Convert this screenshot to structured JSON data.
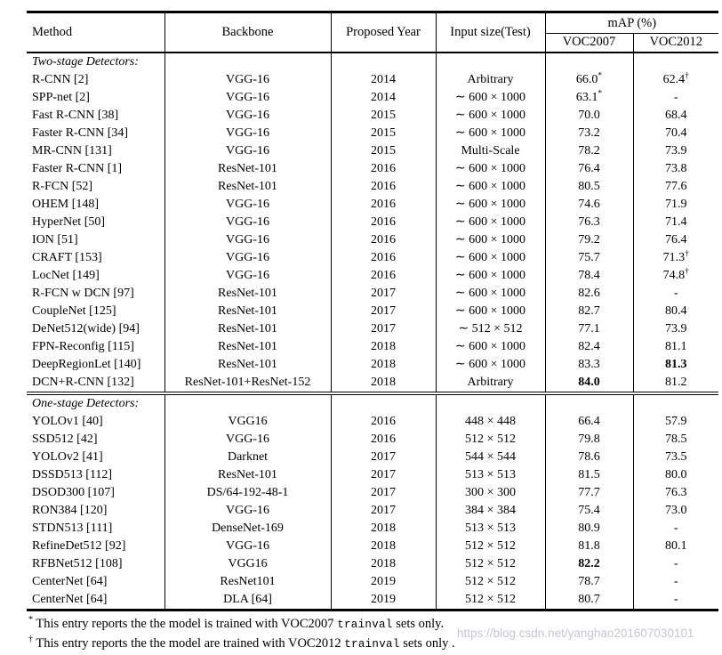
{
  "table": {
    "headers": {
      "method": "Method",
      "backbone": "Backbone",
      "year": "Proposed Year",
      "input": "Input size(Test)",
      "map": "mAP (%)",
      "voc2007": "VOC2007",
      "voc2012": "VOC2012"
    },
    "sections": [
      {
        "label": "Two-stage Detectors:",
        "rows": [
          {
            "method": "R-CNN [2]",
            "backbone": "VGG-16",
            "year": "2014",
            "input": "Arbitrary",
            "voc2007": {
              "text": "66.0",
              "sup": "*"
            },
            "voc2012": {
              "text": "62.4",
              "sup": "†"
            }
          },
          {
            "method": "SPP-net [2]",
            "backbone": "VGG-16",
            "year": "2014",
            "input": "∼ 600 × 1000",
            "voc2007": {
              "text": "63.1",
              "sup": "*"
            },
            "voc2012": {
              "text": "-"
            }
          },
          {
            "method": "Fast R-CNN [38]",
            "backbone": "VGG-16",
            "year": "2015",
            "input": "∼ 600 × 1000",
            "voc2007": {
              "text": "70.0"
            },
            "voc2012": {
              "text": "68.4"
            }
          },
          {
            "method": "Faster R-CNN [34]",
            "backbone": "VGG-16",
            "year": "2015",
            "input": "∼ 600 × 1000",
            "voc2007": {
              "text": "73.2"
            },
            "voc2012": {
              "text": "70.4"
            }
          },
          {
            "method": "MR-CNN [131]",
            "backbone": "VGG-16",
            "year": "2015",
            "input": "Multi-Scale",
            "voc2007": {
              "text": "78.2"
            },
            "voc2012": {
              "text": "73.9"
            }
          },
          {
            "method": "Faster R-CNN [1]",
            "backbone": "ResNet-101",
            "year": "2016",
            "input": "∼ 600 × 1000",
            "voc2007": {
              "text": "76.4"
            },
            "voc2012": {
              "text": "73.8"
            }
          },
          {
            "method": "R-FCN [52]",
            "backbone": "ResNet-101",
            "year": "2016",
            "input": "∼ 600 × 1000",
            "voc2007": {
              "text": "80.5"
            },
            "voc2012": {
              "text": "77.6"
            }
          },
          {
            "method": "OHEM [148]",
            "backbone": "VGG-16",
            "year": "2016",
            "input": "∼ 600 × 1000",
            "voc2007": {
              "text": "74.6"
            },
            "voc2012": {
              "text": "71.9"
            }
          },
          {
            "method": "HyperNet [50]",
            "backbone": "VGG-16",
            "year": "2016",
            "input": "∼ 600 × 1000",
            "voc2007": {
              "text": "76.3"
            },
            "voc2012": {
              "text": "71.4"
            }
          },
          {
            "method": "ION [51]",
            "backbone": "VGG-16",
            "year": "2016",
            "input": "∼ 600 × 1000",
            "voc2007": {
              "text": "79.2"
            },
            "voc2012": {
              "text": "76.4"
            }
          },
          {
            "method": "CRAFT [153]",
            "backbone": "VGG-16",
            "year": "2016",
            "input": "∼ 600 × 1000",
            "voc2007": {
              "text": "75.7"
            },
            "voc2012": {
              "text": "71.3",
              "sup": "†"
            }
          },
          {
            "method": "LocNet [149]",
            "backbone": "VGG-16",
            "year": "2016",
            "input": "∼ 600 × 1000",
            "voc2007": {
              "text": "78.4"
            },
            "voc2012": {
              "text": "74.8",
              "sup": "†"
            }
          },
          {
            "method": "R-FCN w DCN [97]",
            "backbone": "ResNet-101",
            "year": "2017",
            "input": "∼ 600 × 1000",
            "voc2007": {
              "text": "82.6"
            },
            "voc2012": {
              "text": "-"
            }
          },
          {
            "method": "CoupleNet [125]",
            "backbone": "ResNet-101",
            "year": "2017",
            "input": "∼ 600 × 1000",
            "voc2007": {
              "text": "82.7"
            },
            "voc2012": {
              "text": "80.4"
            }
          },
          {
            "method": "DeNet512(wide) [94]",
            "backbone": "ResNet-101",
            "year": "2017",
            "input": "∼ 512 × 512",
            "voc2007": {
              "text": "77.1"
            },
            "voc2012": {
              "text": "73.9"
            }
          },
          {
            "method": "FPN-Reconfig [115]",
            "backbone": "ResNet-101",
            "year": "2018",
            "input": "∼ 600 × 1000",
            "voc2007": {
              "text": "82.4"
            },
            "voc2012": {
              "text": "81.1"
            }
          },
          {
            "method": "DeepRegionLet [140]",
            "backbone": "ResNet-101",
            "year": "2018",
            "input": "∼ 600 × 1000",
            "voc2007": {
              "text": "83.3"
            },
            "voc2012": {
              "text": "81.3",
              "bold": true
            }
          },
          {
            "method": "DCN+R-CNN [132]",
            "backbone": "ResNet-101+ResNet-152",
            "year": "2018",
            "input": "Arbitrary",
            "voc2007": {
              "text": "84.0",
              "bold": true
            },
            "voc2012": {
              "text": "81.2"
            }
          }
        ]
      },
      {
        "label": "One-stage Detectors:",
        "rows": [
          {
            "method": "YOLOv1 [40]",
            "backbone": "VGG16",
            "year": "2016",
            "input": "448 × 448",
            "voc2007": {
              "text": "66.4"
            },
            "voc2012": {
              "text": "57.9"
            }
          },
          {
            "method": "SSD512 [42]",
            "backbone": "VGG-16",
            "year": "2016",
            "input": "512 × 512",
            "voc2007": {
              "text": "79.8"
            },
            "voc2012": {
              "text": "78.5"
            }
          },
          {
            "method": "YOLOv2 [41]",
            "backbone": "Darknet",
            "year": "2017",
            "input": "544 × 544",
            "voc2007": {
              "text": "78.6"
            },
            "voc2012": {
              "text": "73.5"
            }
          },
          {
            "method": "DSSD513 [112]",
            "backbone": "ResNet-101",
            "year": "2017",
            "input": "513 × 513",
            "voc2007": {
              "text": "81.5"
            },
            "voc2012": {
              "text": "80.0"
            }
          },
          {
            "method": "DSOD300 [107]",
            "backbone": "DS/64-192-48-1",
            "year": "2017",
            "input": "300 × 300",
            "voc2007": {
              "text": "77.7"
            },
            "voc2012": {
              "text": "76.3"
            }
          },
          {
            "method": "RON384 [120]",
            "backbone": "VGG-16",
            "year": "2017",
            "input": "384 × 384",
            "voc2007": {
              "text": "75.4"
            },
            "voc2012": {
              "text": "73.0"
            }
          },
          {
            "method": "STDN513 [111]",
            "backbone": "DenseNet-169",
            "year": "2018",
            "input": "513 × 513",
            "voc2007": {
              "text": "80.9"
            },
            "voc2012": {
              "text": "-"
            }
          },
          {
            "method": "RefineDet512 [92]",
            "backbone": "VGG-16",
            "year": "2018",
            "input": "512 × 512",
            "voc2007": {
              "text": "81.8"
            },
            "voc2012": {
              "text": "80.1"
            }
          },
          {
            "method": "RFBNet512 [108]",
            "backbone": "VGG16",
            "year": "2018",
            "input": "512 × 512",
            "voc2007": {
              "text": "82.2",
              "bold": true
            },
            "voc2012": {
              "text": "-"
            }
          },
          {
            "method": "CenterNet [64]",
            "backbone": "ResNet101",
            "year": "2019",
            "input": "512 × 512",
            "voc2007": {
              "text": "78.7"
            },
            "voc2012": {
              "text": "-"
            }
          },
          {
            "method": "CenterNet [64]",
            "backbone": "DLA [64]",
            "year": "2019",
            "input": "512 × 512",
            "voc2007": {
              "text": "80.7"
            },
            "voc2012": {
              "text": "-"
            }
          }
        ]
      }
    ]
  },
  "footnotes": [
    {
      "marker": "*",
      "before": "This entry reports the the model is trained with VOC2007 ",
      "mono": "trainval",
      "after": " sets only."
    },
    {
      "marker": "†",
      "before": "This entry reports the the model are trained with VOC2012 ",
      "mono": "trainval",
      "after": " sets only ."
    }
  ],
  "watermark": {
    "text": "https://blog.csdn.net/yanghao201607030101",
    "color": "#c3c7d0"
  },
  "colors": {
    "border": "#000000",
    "text": "#000000",
    "background": "#ffffff"
  }
}
